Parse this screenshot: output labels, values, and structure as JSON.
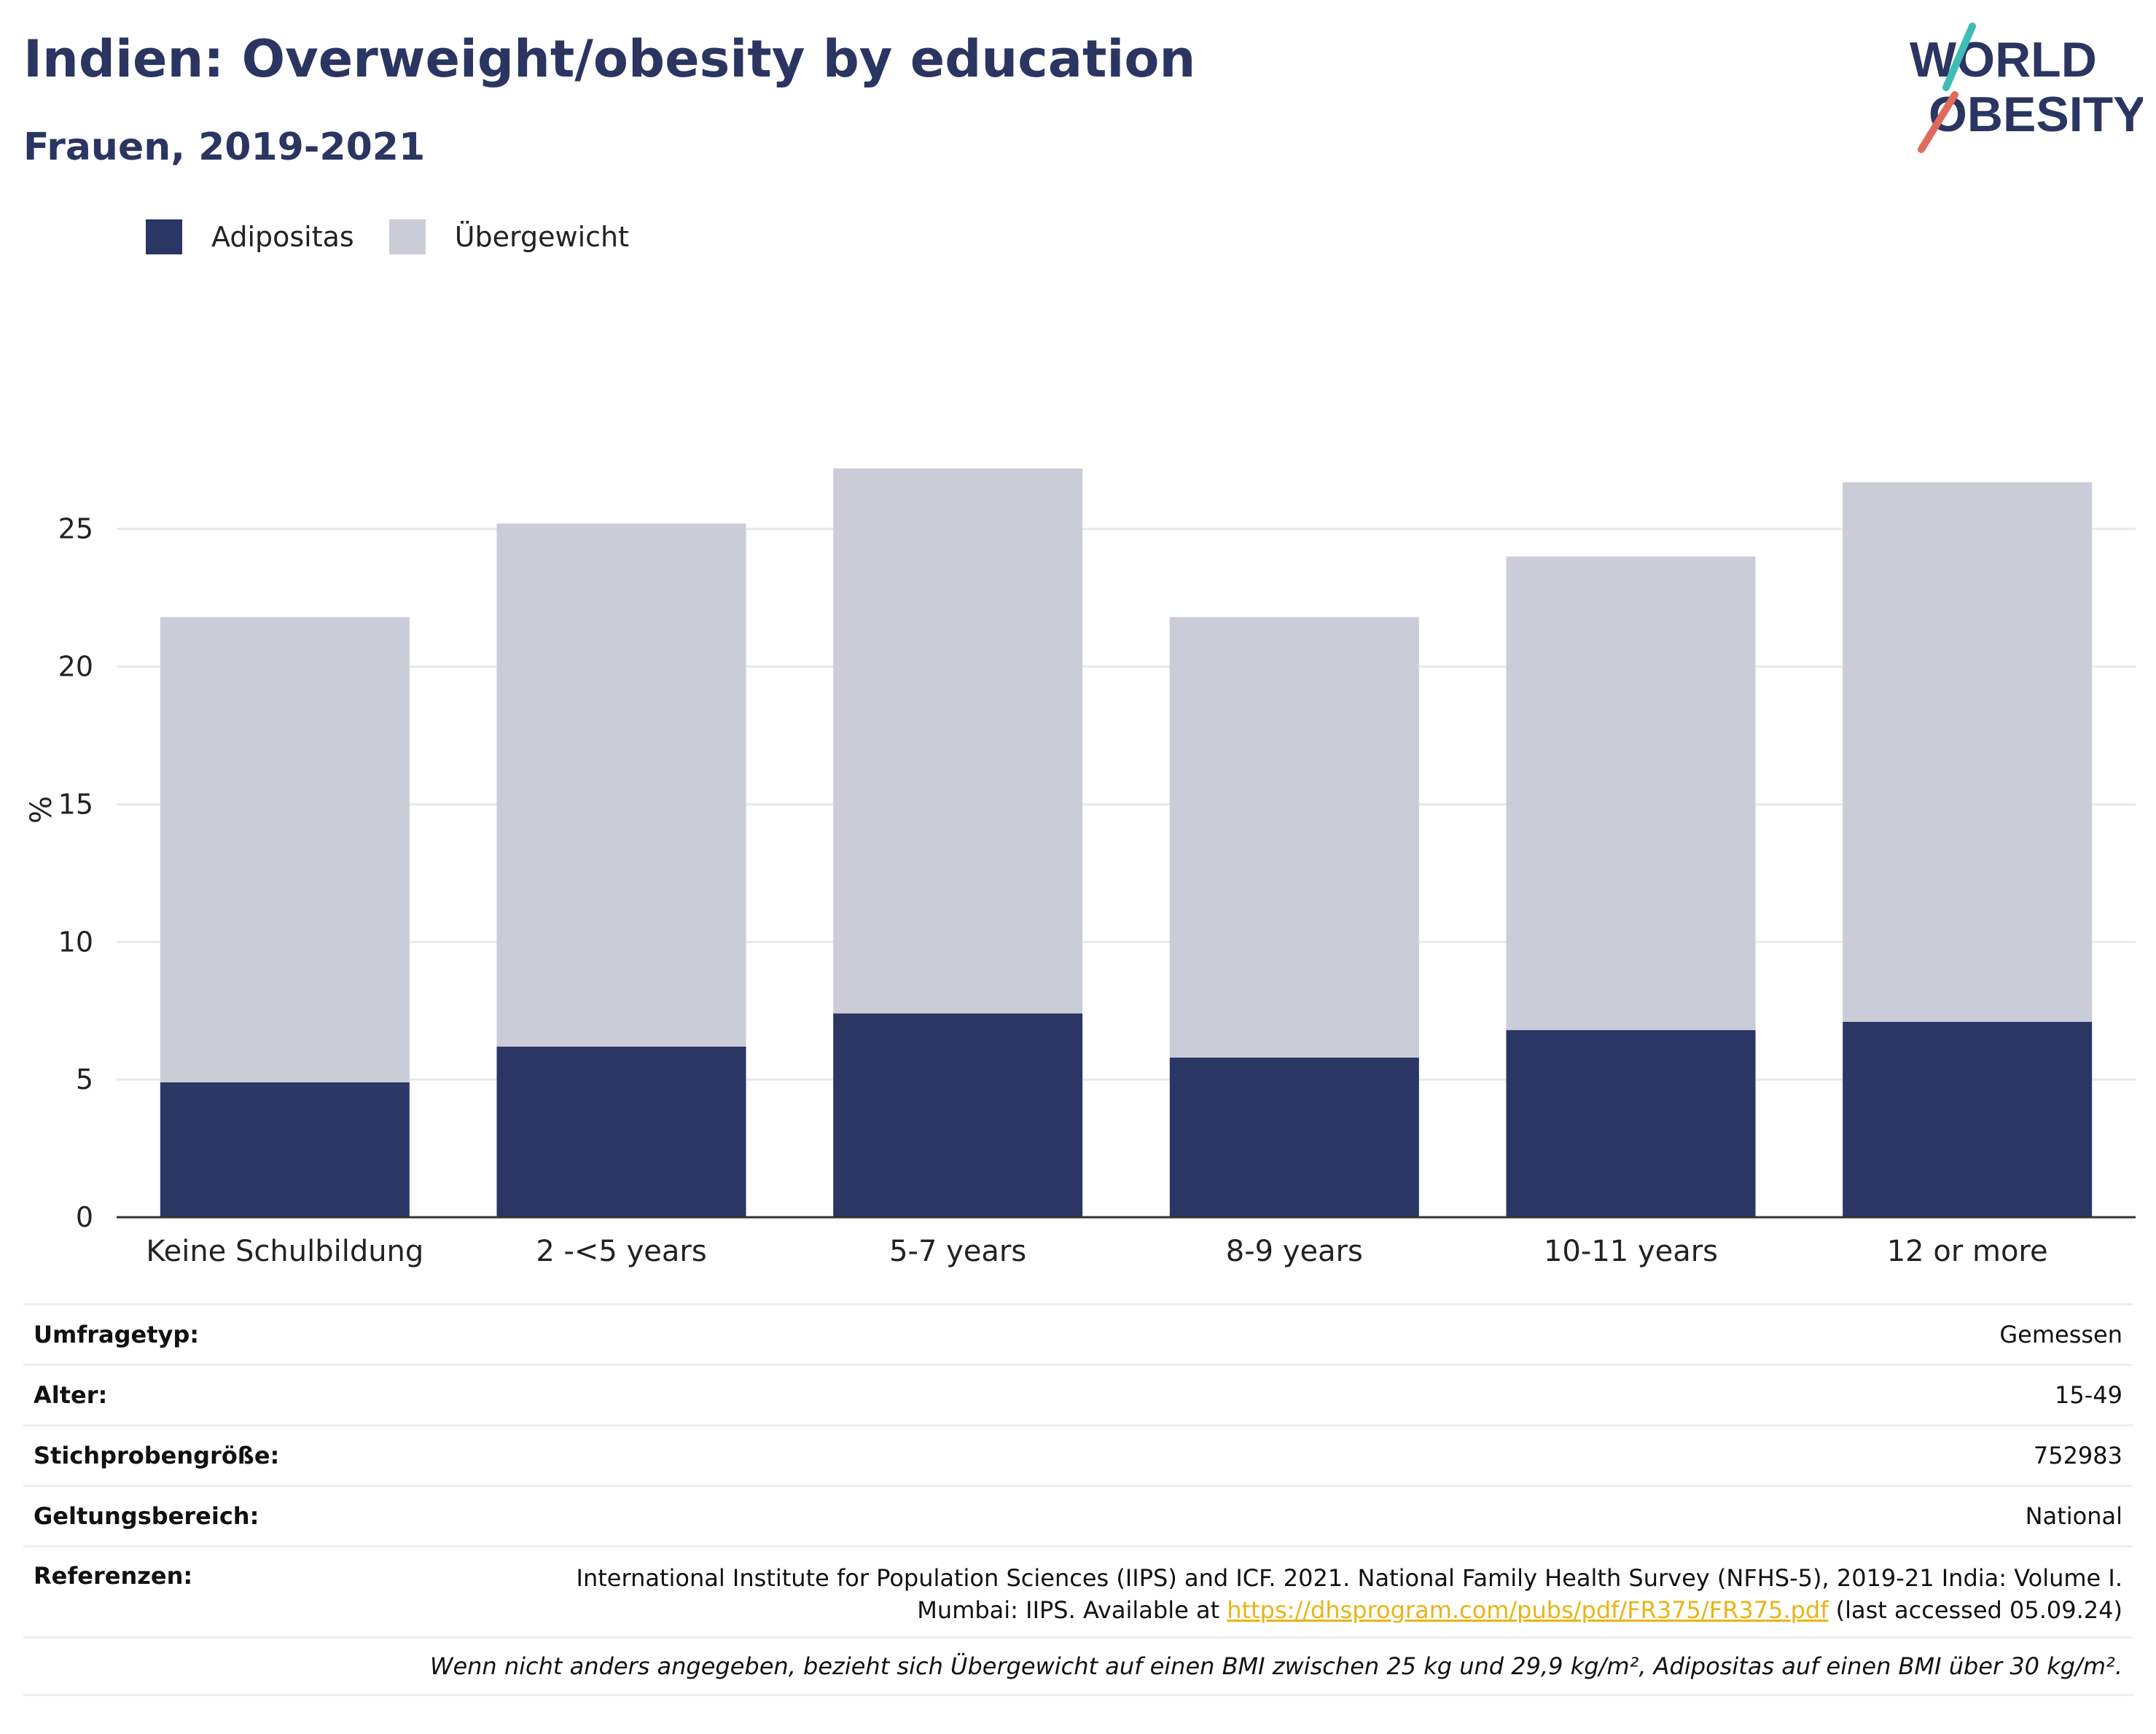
{
  "header": {
    "title": "Indien: Overweight/obesity by education",
    "subtitle": "Frauen, 2019-2021"
  },
  "logo": {
    "line1": "WORLD",
    "line2": "OBESITY",
    "accent_colors": [
      "#3dbdb5",
      "#e06b5c"
    ],
    "text_color": "#2a3561"
  },
  "legend": [
    {
      "label": "Adipositas",
      "color": "#2a3664"
    },
    {
      "label": "Übergewicht",
      "color": "#cacdd8"
    }
  ],
  "chart_data": {
    "type": "bar",
    "stacked": true,
    "categories": [
      "Keine Schulbildung",
      "2 -<5 years",
      "5-7 years",
      "8-9 years",
      "10-11 years",
      "12 or more"
    ],
    "series": [
      {
        "name": "Adipositas",
        "color": "#2a3664",
        "values": [
          4.9,
          6.2,
          7.4,
          5.8,
          6.8,
          7.1
        ]
      },
      {
        "name": "Übergewicht",
        "color": "#cacdd8",
        "values": [
          16.9,
          19.0,
          19.8,
          16.0,
          17.2,
          19.6
        ]
      }
    ],
    "ylabel": "%",
    "xlabel": "",
    "yticks": [
      0,
      5,
      10,
      15,
      20,
      25
    ],
    "ylim": [
      0,
      29.6
    ],
    "grid": true,
    "legend_position": "top-left"
  },
  "info": {
    "rows": [
      {
        "key": "Umfragetyp:",
        "value": "Gemessen"
      },
      {
        "key": "Alter:",
        "value": "15-49"
      },
      {
        "key": "Stichprobengröße:",
        "value": "752983"
      },
      {
        "key": "Geltungsbereich:",
        "value": "National"
      }
    ],
    "reference": {
      "key": "Referenzen:",
      "line1": "International Institute for Population Sciences (IIPS) and ICF. 2021. National Family Health Survey (NFHS-5), 2019-21 India: Volume I.",
      "line2_prefix": "Mumbai: IIPS. Available at ",
      "link": "https://dhsprogram.com/pubs/pdf/FR375/FR375.pdf",
      "line2_suffix": " (last accessed 05.09.24)"
    },
    "note": "Wenn nicht anders angegeben, bezieht sich Übergewicht auf einen BMI zwischen 25 kg und 29,9 kg/m², Adipositas auf einen BMI über 30 kg/m²."
  }
}
